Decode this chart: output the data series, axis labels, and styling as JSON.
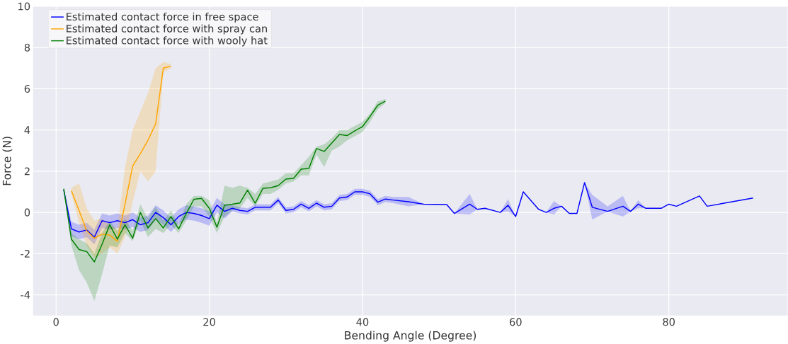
{
  "chart_data": {
    "type": "line",
    "xlabel": "Bending Angle (Degree)",
    "ylabel": "Force (N)",
    "xlim": [
      -3,
      95.5
    ],
    "ylim": [
      -5,
      10
    ],
    "xticks": [
      0,
      20,
      40,
      60,
      80
    ],
    "yticks": [
      -4,
      -2,
      0,
      2,
      4,
      6,
      8,
      10
    ],
    "grid": true,
    "legend": "top left",
    "series": [
      {
        "name": "Estimated contact force in free space",
        "color": "#0000ff",
        "x": [
          1,
          2,
          3,
          4,
          5,
          6,
          7,
          8,
          9,
          10,
          11,
          12,
          13,
          14,
          15,
          16,
          17,
          18,
          19,
          20,
          21,
          22,
          23,
          24,
          25,
          26,
          27,
          28,
          29,
          30,
          31,
          32,
          33,
          34,
          35,
          36,
          37,
          38,
          39,
          40,
          41,
          42,
          43,
          44,
          46,
          48,
          51,
          52,
          54,
          55,
          56,
          58,
          59,
          60,
          61,
          63,
          64,
          65,
          66,
          67,
          68,
          69,
          70,
          72,
          74,
          75,
          76,
          77,
          79,
          80,
          81,
          84,
          85,
          91
        ],
        "values": [
          1.1,
          -0.8,
          -0.95,
          -0.85,
          -1.2,
          -0.4,
          -0.5,
          -0.4,
          -0.5,
          -0.35,
          -0.6,
          -0.5,
          0,
          -0.25,
          -0.6,
          -0.2,
          0,
          -0.05,
          -0.15,
          -0.3,
          0.35,
          0.05,
          0.2,
          0.1,
          0.05,
          0.25,
          0.25,
          0.25,
          0.6,
          0.1,
          0.15,
          0.4,
          0.2,
          0.45,
          0.25,
          0.3,
          0.7,
          0.75,
          1.0,
          1.0,
          0.9,
          0.5,
          0.65,
          0.6,
          0.52,
          0.4,
          0.38,
          -0.05,
          0.4,
          0.15,
          0.2,
          0,
          0.35,
          -0.2,
          1.0,
          0.15,
          0,
          0.2,
          0.3,
          -0.05,
          -0.05,
          1.45,
          0.25,
          0.05,
          0.3,
          0.05,
          0.4,
          0.2,
          0.2,
          0.4,
          0.3,
          0.8,
          0.3,
          0.7
        ],
        "lower": [
          1.0,
          -1.15,
          -1.3,
          -1.2,
          -1.55,
          -0.75,
          -0.85,
          -0.75,
          -0.85,
          -0.7,
          -0.95,
          -0.85,
          -0.35,
          -0.6,
          -0.95,
          -0.55,
          -0.35,
          -0.4,
          -0.5,
          -0.65,
          0,
          -0.3,
          0.05,
          -0.05,
          -0.1,
          0.1,
          0.1,
          0.1,
          0.45,
          -0.05,
          0,
          0.25,
          0.05,
          0.3,
          0.1,
          0.15,
          0.55,
          0.6,
          0.85,
          0.85,
          0.75,
          0.35,
          0.5,
          0.45,
          0.3,
          0.4,
          0.38,
          -0.05,
          -0.1,
          0.15,
          0.2,
          0,
          0.05,
          -0.2,
          1.0,
          0.15,
          0,
          -0.1,
          0.3,
          -0.05,
          -0.05,
          1.45,
          -0.35,
          0.05,
          -0.2,
          0.05,
          0.2,
          0.2,
          0.2,
          0.4,
          0.3,
          0.8,
          0.3,
          0.7
        ],
        "upper": [
          1.2,
          -0.45,
          -0.6,
          -0.5,
          -0.85,
          -0.05,
          -0.15,
          -0.05,
          -0.15,
          0,
          -0.25,
          -0.15,
          0.35,
          0.1,
          -0.25,
          0.15,
          0.35,
          0.3,
          0.2,
          0.05,
          0.7,
          0.4,
          0.35,
          0.25,
          0.2,
          0.4,
          0.4,
          0.4,
          0.75,
          0.25,
          0.3,
          0.55,
          0.35,
          0.6,
          0.4,
          0.45,
          0.85,
          0.9,
          1.15,
          1.15,
          1.05,
          0.65,
          0.8,
          0.75,
          0.75,
          0.4,
          0.38,
          -0.05,
          0.9,
          0.15,
          0.2,
          0,
          0.65,
          -0.2,
          1.0,
          0.15,
          0,
          0.55,
          0.3,
          -0.05,
          -0.05,
          1.45,
          0.85,
          0.3,
          0.8,
          0.05,
          0.6,
          0.2,
          0.2,
          0.4,
          0.3,
          0.8,
          0.3,
          0.7
        ]
      },
      {
        "name": "Estimated contact force with spray can",
        "color": "#ffa500",
        "x": [
          2,
          3,
          4,
          5,
          6,
          7,
          8,
          9,
          10,
          11,
          12,
          13,
          14,
          15
        ],
        "values": [
          1.05,
          0.1,
          -0.9,
          -1.25,
          -1.05,
          -1.1,
          -1.4,
          0.4,
          2.25,
          2.85,
          3.5,
          4.3,
          7.0,
          7.1
        ],
        "lower": [
          0.9,
          -0.5,
          -1.6,
          -2.2,
          -2.0,
          -1.7,
          -2.0,
          -1.2,
          0.5,
          2.0,
          1.5,
          2.0,
          6.8,
          7.0
        ],
        "upper": [
          1.2,
          1.4,
          0.2,
          -0.4,
          -0.3,
          -0.6,
          -0.8,
          2.2,
          4.0,
          4.9,
          5.8,
          7.0,
          7.3,
          7.2
        ]
      },
      {
        "name": "Estimated contact force with wooly hat",
        "color": "#008000",
        "x": [
          1,
          2,
          3,
          4,
          5,
          6,
          7,
          8,
          9,
          10,
          11,
          12,
          13,
          14,
          15,
          16,
          17,
          18,
          19,
          20,
          21,
          22,
          23,
          24,
          25,
          26,
          27,
          28,
          29,
          30,
          31,
          32,
          33,
          34,
          35,
          36,
          37,
          38,
          39,
          40,
          41,
          42,
          43
        ],
        "values": [
          1.15,
          -1.3,
          -1.8,
          -1.9,
          -2.4,
          -1.55,
          -0.6,
          -1.3,
          -0.6,
          -1.25,
          0,
          -0.75,
          -0.3,
          -0.75,
          -0.2,
          -0.8,
          -0.05,
          0.64,
          0.68,
          0.2,
          -0.72,
          0.35,
          0.4,
          0.46,
          1.08,
          0.45,
          1.17,
          1.2,
          1.3,
          1.62,
          1.65,
          2.1,
          2.13,
          3.1,
          2.96,
          3.37,
          3.78,
          3.73,
          3.96,
          4.16,
          4.66,
          5.2,
          5.4
        ],
        "lower": [
          1.1,
          -1.6,
          -2.8,
          -3.4,
          -4.3,
          -3.0,
          -1.6,
          -1.7,
          -1.0,
          -1.4,
          -0.4,
          -1.2,
          -0.8,
          -1.0,
          -0.6,
          -1.0,
          -0.4,
          0.3,
          0.3,
          -0.2,
          -1.0,
          -0.2,
          0.1,
          0.2,
          0.7,
          0.3,
          0.9,
          0.9,
          1.1,
          1.4,
          1.5,
          1.8,
          1.8,
          2.8,
          2.2,
          3.0,
          3.2,
          3.5,
          3.7,
          3.9,
          4.4,
          5.0,
          5.3
        ],
        "upper": [
          1.2,
          -1.0,
          -1.3,
          -1.5,
          -2.0,
          -1.0,
          -0.4,
          -0.9,
          -0.3,
          -0.9,
          0.4,
          -0.3,
          0.3,
          -0.4,
          0.1,
          -0.6,
          0.4,
          0.8,
          0.8,
          0.6,
          -0.5,
          1.3,
          1.2,
          1.3,
          1.2,
          0.9,
          1.4,
          1.5,
          1.6,
          1.9,
          1.9,
          2.3,
          2.7,
          3.2,
          3.3,
          3.6,
          4.0,
          4.0,
          4.2,
          4.4,
          4.8,
          5.4,
          5.5
        ]
      }
    ]
  }
}
